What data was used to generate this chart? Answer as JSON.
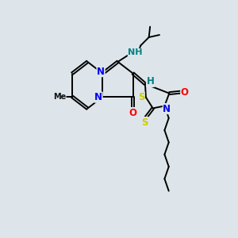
{
  "background_color": "#dde5ea",
  "atom_colors": {
    "N": "#0000ee",
    "O": "#ff0000",
    "S": "#cccc00",
    "C": "#000000",
    "H": "#008080"
  },
  "bond_color": "#000000",
  "bond_width": 1.4
}
